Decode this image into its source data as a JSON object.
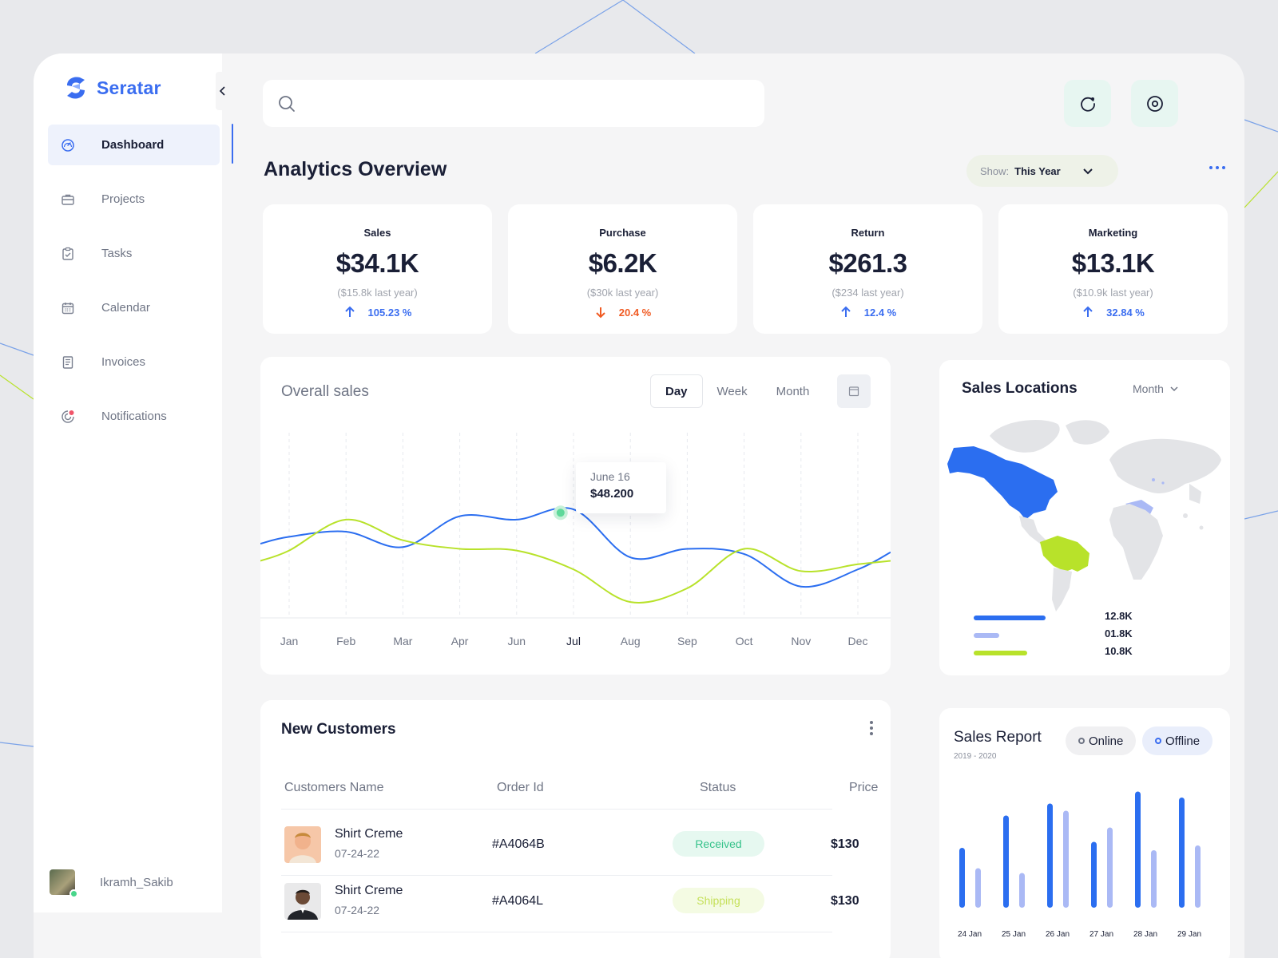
{
  "app": {
    "name": "Seratar"
  },
  "sidebar": {
    "items": [
      {
        "label": "Dashboard",
        "icon": "gauge-icon",
        "active": true
      },
      {
        "label": "Projects",
        "icon": "briefcase-icon",
        "active": false
      },
      {
        "label": "Tasks",
        "icon": "clipboard-check-icon",
        "active": false
      },
      {
        "label": "Calendar",
        "icon": "calendar-icon",
        "active": false
      },
      {
        "label": "Invoices",
        "icon": "invoice-icon",
        "active": false
      },
      {
        "label": "Notifications",
        "icon": "notification-icon",
        "active": false
      }
    ],
    "user": {
      "name": "Ikramh_Sakib",
      "online": true
    }
  },
  "header": {
    "search": {
      "placeholder": "",
      "value": ""
    },
    "title": "Analytics Overview",
    "show": {
      "label": "Show:",
      "value": "This Year"
    }
  },
  "stats": [
    {
      "title": "Sales",
      "value": "$34.1K",
      "previous": "($15.8k last year)",
      "change": "105.23 %",
      "direction": "up"
    },
    {
      "title": "Purchase",
      "value": "$6.2K",
      "previous": "($30k last year)",
      "change": "20.4 %",
      "direction": "down"
    },
    {
      "title": "Return",
      "value": "$261.3",
      "previous": "($234 last year)",
      "change": "12.4 %",
      "direction": "up"
    },
    {
      "title": "Marketing",
      "value": "$13.1K",
      "previous": "($10.9k last year)",
      "change": "32.84 %",
      "direction": "up"
    }
  ],
  "overall_sales": {
    "title": "Overall sales",
    "periods": [
      "Day",
      "Week",
      "Month"
    ],
    "active_period": "Day",
    "tooltip": {
      "date": "June 16",
      "value": "$48.200"
    }
  },
  "sales_locations": {
    "title": "Sales Locations",
    "period": "Month",
    "legend": [
      {
        "value": "12.8K",
        "color": "#2b6ef0"
      },
      {
        "value": "01.8K",
        "color": "#aab9f5"
      },
      {
        "value": "10.8K",
        "color": "#b8e22a"
      }
    ]
  },
  "customers": {
    "title": "New Customers",
    "columns": [
      "Customers Name",
      "Order Id",
      "Status",
      "Price"
    ],
    "rows": [
      {
        "name": "Shirt Creme",
        "date": "07-24-22",
        "order_id": "#A4064B",
        "status": "Received",
        "price": "$130"
      },
      {
        "name": "Shirt Creme",
        "date": "07-24-22",
        "order_id": "#A4064L",
        "status": "Shipping",
        "price": "$130"
      }
    ]
  },
  "sales_report": {
    "title": "Sales Report",
    "subtitle": "2019 - 2020",
    "toggles": [
      "Online",
      "Offline"
    ]
  },
  "chart_data": [
    {
      "type": "line",
      "title": "Overall sales",
      "categories": [
        "Jan",
        "Feb",
        "Mar",
        "Apr",
        "Jun",
        "Jul",
        "Aug",
        "Sep",
        "Oct",
        "Nov",
        "Dec"
      ],
      "series": [
        {
          "values": [
            44,
            47,
            38,
            56,
            54,
            60,
            32,
            37,
            34,
            15,
            25
          ],
          "color": "#2b6ef0"
        },
        {
          "values": [
            36,
            54,
            42,
            37,
            36,
            25,
            6,
            14,
            37,
            24,
            28
          ],
          "color": "#b8e22a"
        }
      ],
      "highlight": {
        "label": "June 16",
        "value": "$48.200"
      },
      "ylim": [
        0,
        100
      ],
      "grid": "vertical-dashed"
    },
    {
      "type": "bar",
      "title": "Sales Report",
      "categories": [
        "24 Jan",
        "25 Jan",
        "26 Jan",
        "27 Jan",
        "28 Jan",
        "29 Jan"
      ],
      "series": [
        {
          "name": "Online",
          "values": [
            50,
            77,
            87,
            55,
            97,
            92
          ],
          "color": "#2b6ef0"
        },
        {
          "name": "Offline",
          "values": [
            33,
            29,
            81,
            67,
            48,
            52
          ],
          "color": "#aab9f5"
        }
      ],
      "ylim": [
        0,
        100
      ]
    }
  ]
}
